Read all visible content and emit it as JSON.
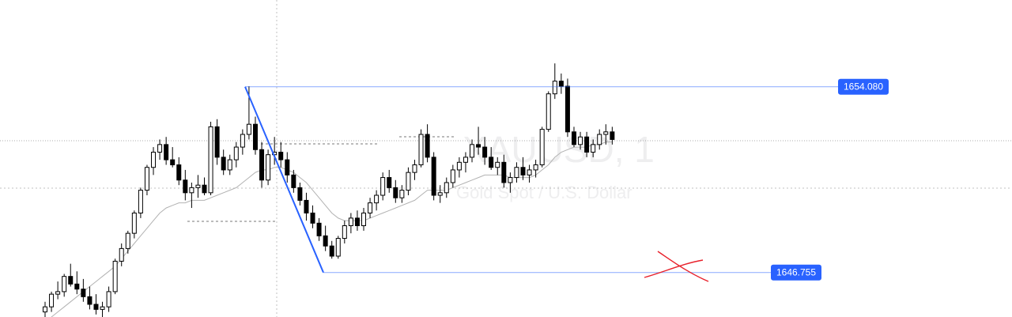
{
  "watermark": {
    "symbol": "XAUUSD, 1",
    "description": "Gold Spot / U.S. Dollar"
  },
  "chart_data": {
    "type": "candlestick",
    "title": "",
    "xlabel": "",
    "ylabel": "",
    "ylim": [
      1645.0,
      1657.5
    ],
    "grid": false,
    "colors": {
      "up_body": "#ffffff",
      "down_body": "#000000",
      "wick": "#000000",
      "moving_average": "#b2b2b2",
      "drawing": "#2962ff",
      "price_label": "#2962ff",
      "annotation": "#e8202a"
    },
    "candles": [
      [
        1645.2,
        1645.6,
        1645.0,
        1645.4
      ],
      [
        1645.4,
        1646.0,
        1645.2,
        1645.9
      ],
      [
        1645.9,
        1646.4,
        1645.7,
        1646.0
      ],
      [
        1646.0,
        1646.7,
        1645.8,
        1646.6
      ],
      [
        1646.6,
        1647.1,
        1646.2,
        1646.3
      ],
      [
        1646.3,
        1646.8,
        1645.9,
        1646.1
      ],
      [
        1646.1,
        1646.5,
        1645.6,
        1645.8
      ],
      [
        1645.8,
        1646.2,
        1645.3,
        1645.5
      ],
      [
        1645.5,
        1645.9,
        1645.1,
        1645.3
      ],
      [
        1645.3,
        1645.6,
        1645.0,
        1645.4
      ],
      [
        1645.4,
        1646.2,
        1645.2,
        1646.0
      ],
      [
        1646.0,
        1647.3,
        1645.9,
        1647.2
      ],
      [
        1647.2,
        1647.9,
        1647.0,
        1647.7
      ],
      [
        1647.7,
        1648.4,
        1647.5,
        1648.3
      ],
      [
        1648.3,
        1649.2,
        1648.1,
        1649.1
      ],
      [
        1649.1,
        1650.1,
        1648.9,
        1650.0
      ],
      [
        1650.0,
        1651.0,
        1649.8,
        1650.9
      ],
      [
        1650.9,
        1651.7,
        1650.6,
        1651.5
      ],
      [
        1651.5,
        1652.0,
        1651.2,
        1651.8
      ],
      [
        1651.8,
        1652.1,
        1651.0,
        1651.2
      ],
      [
        1651.2,
        1651.7,
        1650.9,
        1651.0
      ],
      [
        1651.0,
        1651.3,
        1650.2,
        1650.4
      ],
      [
        1650.4,
        1650.8,
        1649.6,
        1649.9
      ],
      [
        1649.9,
        1650.3,
        1649.3,
        1650.1
      ],
      [
        1650.1,
        1650.6,
        1649.7,
        1650.2
      ],
      [
        1650.2,
        1650.5,
        1649.8,
        1649.9
      ],
      [
        1649.9,
        1652.7,
        1649.8,
        1652.5
      ],
      [
        1652.5,
        1652.8,
        1651.0,
        1651.3
      ],
      [
        1651.3,
        1651.6,
        1650.6,
        1650.8
      ],
      [
        1650.8,
        1651.4,
        1650.6,
        1651.2
      ],
      [
        1651.2,
        1651.9,
        1650.9,
        1651.7
      ],
      [
        1651.7,
        1652.4,
        1651.4,
        1652.2
      ],
      [
        1652.2,
        1654.1,
        1652.0,
        1652.6
      ],
      [
        1652.6,
        1652.9,
        1651.4,
        1651.6
      ],
      [
        1651.6,
        1651.9,
        1650.1,
        1650.4
      ],
      [
        1650.4,
        1651.6,
        1650.2,
        1651.4
      ],
      [
        1651.4,
        1652.1,
        1651.0,
        1651.5
      ],
      [
        1651.5,
        1651.9,
        1650.9,
        1651.2
      ],
      [
        1651.2,
        1651.5,
        1650.3,
        1650.6
      ],
      [
        1650.6,
        1650.8,
        1649.9,
        1650.1
      ],
      [
        1650.1,
        1650.3,
        1649.4,
        1649.6
      ],
      [
        1649.6,
        1649.9,
        1648.8,
        1649.1
      ],
      [
        1649.1,
        1649.4,
        1648.5,
        1648.7
      ],
      [
        1648.7,
        1648.9,
        1648.0,
        1648.2
      ],
      [
        1648.2,
        1648.6,
        1647.6,
        1647.8
      ],
      [
        1647.8,
        1648.0,
        1647.3,
        1647.4
      ],
      [
        1647.4,
        1648.2,
        1647.3,
        1648.1
      ],
      [
        1648.1,
        1648.8,
        1647.9,
        1648.6
      ],
      [
        1648.6,
        1649.1,
        1648.3,
        1648.9
      ],
      [
        1648.9,
        1649.2,
        1648.4,
        1648.6
      ],
      [
        1648.6,
        1649.3,
        1648.4,
        1649.1
      ],
      [
        1649.1,
        1649.7,
        1648.9,
        1649.5
      ],
      [
        1649.5,
        1650.0,
        1649.2,
        1649.8
      ],
      [
        1649.8,
        1650.7,
        1649.6,
        1650.5
      ],
      [
        1650.5,
        1650.8,
        1649.9,
        1650.1
      ],
      [
        1650.1,
        1650.4,
        1649.5,
        1649.7
      ],
      [
        1649.7,
        1650.2,
        1649.5,
        1650.0
      ],
      [
        1650.0,
        1650.9,
        1649.8,
        1650.7
      ],
      [
        1650.7,
        1651.2,
        1650.4,
        1651.0
      ],
      [
        1651.0,
        1652.4,
        1650.9,
        1652.2
      ],
      [
        1652.2,
        1652.6,
        1651.1,
        1651.3
      ],
      [
        1651.3,
        1651.5,
        1649.6,
        1649.8
      ],
      [
        1649.8,
        1650.2,
        1649.5,
        1649.9
      ],
      [
        1649.9,
        1650.5,
        1649.7,
        1650.3
      ],
      [
        1650.3,
        1651.0,
        1650.1,
        1650.8
      ],
      [
        1650.8,
        1651.3,
        1650.5,
        1651.1
      ],
      [
        1651.1,
        1651.5,
        1650.7,
        1651.3
      ],
      [
        1651.3,
        1652.0,
        1651.1,
        1651.8
      ],
      [
        1651.8,
        1652.5,
        1651.4,
        1651.7
      ],
      [
        1651.7,
        1652.1,
        1651.0,
        1651.3
      ],
      [
        1651.3,
        1651.7,
        1650.8,
        1650.9
      ],
      [
        1650.9,
        1651.3,
        1650.6,
        1651.1
      ],
      [
        1651.1,
        1651.4,
        1650.1,
        1650.3
      ],
      [
        1650.3,
        1650.7,
        1649.9,
        1650.5
      ],
      [
        1650.5,
        1651.1,
        1650.3,
        1650.9
      ],
      [
        1650.9,
        1651.3,
        1650.4,
        1650.6
      ],
      [
        1650.6,
        1651.0,
        1650.3,
        1650.8
      ],
      [
        1650.8,
        1651.2,
        1650.5,
        1651.0
      ],
      [
        1651.0,
        1652.5,
        1650.9,
        1652.4
      ],
      [
        1652.4,
        1653.9,
        1652.3,
        1653.8
      ],
      [
        1653.8,
        1655.0,
        1653.6,
        1654.3
      ],
      [
        1654.3,
        1654.6,
        1653.8,
        1654.1
      ],
      [
        1654.1,
        1654.4,
        1652.1,
        1652.3
      ],
      [
        1652.3,
        1652.5,
        1651.7,
        1651.8
      ],
      [
        1651.8,
        1652.3,
        1651.6,
        1652.1
      ],
      [
        1652.1,
        1652.3,
        1651.3,
        1651.5
      ],
      [
        1651.5,
        1652.0,
        1651.3,
        1651.8
      ],
      [
        1651.8,
        1652.4,
        1651.6,
        1652.2
      ],
      [
        1652.2,
        1652.6,
        1651.8,
        1652.3
      ],
      [
        1652.3,
        1652.5,
        1651.8,
        1652.0
      ]
    ],
    "moving_average": [
      1644.8,
      1645.0,
      1645.2,
      1645.4,
      1645.6,
      1645.8,
      1646.0,
      1646.2,
      1646.4,
      1646.6,
      1646.8,
      1647.0,
      1647.3,
      1647.6,
      1647.9,
      1648.2,
      1648.5,
      1648.8,
      1649.1,
      1649.3,
      1649.4,
      1649.5,
      1649.5,
      1649.6,
      1649.6,
      1649.6,
      1649.7,
      1649.8,
      1649.9,
      1650.0,
      1650.1,
      1650.3,
      1650.5,
      1650.7,
      1650.8,
      1650.8,
      1650.9,
      1650.9,
      1650.8,
      1650.7,
      1650.5,
      1650.3,
      1650.0,
      1649.7,
      1649.4,
      1649.1,
      1648.9,
      1648.8,
      1648.8,
      1648.8,
      1648.8,
      1648.9,
      1649.0,
      1649.1,
      1649.2,
      1649.3,
      1649.4,
      1649.5,
      1649.6,
      1649.8,
      1650.0,
      1650.0,
      1650.0,
      1650.0,
      1650.1,
      1650.2,
      1650.3,
      1650.4,
      1650.5,
      1650.6,
      1650.6,
      1650.6,
      1650.6,
      1650.5,
      1650.5,
      1650.5,
      1650.5,
      1650.6,
      1650.8,
      1651.0,
      1651.3,
      1651.5,
      1651.6,
      1651.7,
      1651.7,
      1651.7,
      1651.8,
      1651.8,
      1651.9,
      1651.9
    ],
    "horizontal_levels": [
      {
        "price": 1654.08,
        "label": "1654.080"
      },
      {
        "price": 1646.755,
        "label": "1646.755"
      }
    ],
    "trend_line": {
      "from": [
        1654.08
      ],
      "to": [
        1646.755
      ]
    }
  }
}
